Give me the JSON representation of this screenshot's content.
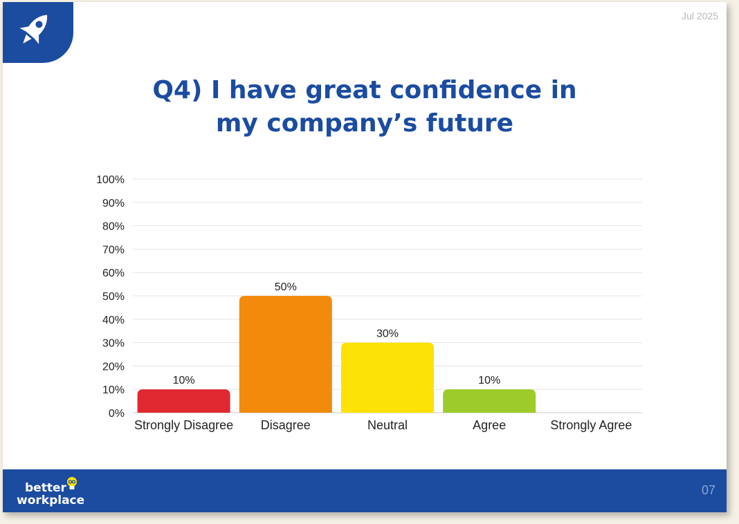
{
  "header": {
    "date": "Jul 2025",
    "logo_icon": "rocket-icon"
  },
  "title": "Q4) I have great confidence in\nmy company’s future",
  "chart_data": {
    "type": "bar",
    "categories": [
      "Strongly Disagree",
      "Disagree",
      "Neutral",
      "Agree",
      "Strongly Agree"
    ],
    "values": [
      10,
      50,
      30,
      10,
      0
    ],
    "data_labels": [
      "10%",
      "50%",
      "30%",
      "10%",
      ""
    ],
    "colors": [
      "#e0282f",
      "#f28a0c",
      "#fde208",
      "#9dcc2a",
      "#cccccc"
    ],
    "ylim": [
      0,
      100
    ],
    "yticks": [
      "0%",
      "10%",
      "20%",
      "30%",
      "40%",
      "50%",
      "60%",
      "70%",
      "80%",
      "90%",
      "100%"
    ],
    "grid": true,
    "legend": "none"
  },
  "footer": {
    "brand_line1": "better",
    "brand_line2": "workplace",
    "brand_icon": "lightbulb-icon",
    "page_number": "07",
    "background": "#1b4ca0"
  }
}
